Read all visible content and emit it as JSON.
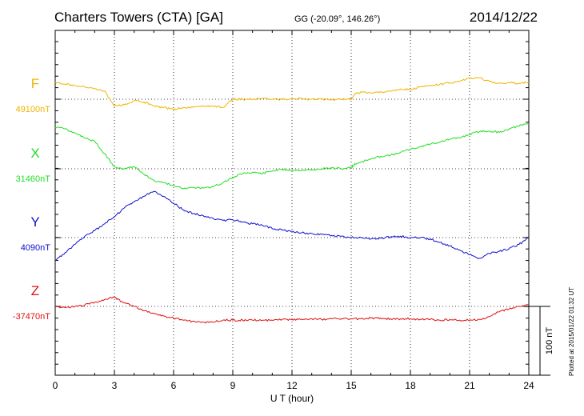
{
  "header": {
    "title": "Charters Towers (CTA)  [GA]",
    "coords": "GG (-20.09°, 146.26°)",
    "date": "2014/12/22"
  },
  "footer": {
    "plotted": "Plotted at 2015/01/22 01:32 UT"
  },
  "chart_data": {
    "type": "line",
    "xlabel": "U T (hour)",
    "xlim": [
      0,
      24
    ],
    "xticks": [
      0,
      3,
      6,
      9,
      12,
      15,
      18,
      21,
      24
    ],
    "grid": true,
    "scale_bar": {
      "label": "100 nT",
      "value_nT": 100
    },
    "colors": {
      "F": "#f0b400",
      "X": "#22dd22",
      "Y": "#1010cc",
      "Z": "#dd1111"
    },
    "series": [
      {
        "name": "F",
        "baseline_label": "49100nT",
        "baseline_nT": 49100,
        "color": "#f0b400",
        "x": [
          0,
          0.5,
          1,
          1.5,
          2,
          2.5,
          3,
          3.5,
          4,
          4.5,
          5,
          5.5,
          6,
          6.5,
          7,
          7.5,
          8,
          8.5,
          9,
          9.5,
          10,
          10.5,
          11,
          11.5,
          12,
          12.5,
          13,
          13.5,
          14,
          14.5,
          15,
          15.2,
          15.5,
          16,
          16.5,
          17,
          17.5,
          18,
          18.5,
          19,
          19.5,
          20,
          20.5,
          21,
          21.5,
          22,
          22.5,
          23,
          23.5,
          24
        ],
        "y": [
          49125,
          49122,
          49120,
          49118,
          49115,
          49112,
          49090,
          49092,
          49098,
          49096,
          49090,
          49088,
          49085,
          49088,
          49088,
          49090,
          49090,
          49088,
          49100,
          49100,
          49100,
          49101,
          49100,
          49100,
          49100,
          49101,
          49100,
          49100,
          49099,
          49100,
          49100,
          49108,
          49110,
          49109,
          49110,
          49112,
          49115,
          49114,
          49118,
          49120,
          49122,
          49124,
          49126,
          49130,
          49131,
          49126,
          49123,
          49124,
          49123,
          49125
        ]
      },
      {
        "name": "X",
        "baseline_label": "31460nT",
        "baseline_nT": 31460,
        "color": "#22dd22",
        "x": [
          0,
          0.5,
          1,
          1.5,
          2,
          2.5,
          3,
          3.5,
          4,
          4.5,
          5,
          5.5,
          6,
          6.5,
          7,
          7.5,
          8,
          8.5,
          9,
          9.5,
          10,
          10.5,
          11,
          11.5,
          12,
          12.5,
          13,
          13.5,
          14,
          14.5,
          15,
          15.2,
          15.5,
          16,
          16.5,
          17,
          17.5,
          18,
          18.5,
          19,
          19.5,
          20,
          20.5,
          21,
          21.5,
          22,
          22.5,
          23,
          23.5,
          24
        ],
        "y": [
          31520,
          31518,
          31512,
          31505,
          31500,
          31482,
          31463,
          31460,
          31463,
          31452,
          31443,
          31440,
          31436,
          31431,
          31433,
          31432,
          31434,
          31440,
          31448,
          31453,
          31455,
          31453,
          31457,
          31459,
          31458,
          31458,
          31458,
          31460,
          31461,
          31460,
          31462,
          31467,
          31470,
          31474,
          31478,
          31480,
          31484,
          31488,
          31492,
          31496,
          31499,
          31503,
          31505,
          31510,
          31514,
          31515,
          31513,
          31518,
          31522,
          31526
        ]
      },
      {
        "name": "Y",
        "baseline_label": "4090nT",
        "baseline_nT": 4090,
        "color": "#1010cc",
        "x": [
          0,
          0.5,
          1,
          1.5,
          2,
          2.5,
          3,
          3.5,
          4,
          4.5,
          5,
          5.5,
          6,
          6.5,
          7,
          7.5,
          8,
          8.5,
          9,
          9.5,
          10,
          10.5,
          11,
          11.5,
          12,
          12.5,
          13,
          13.5,
          14,
          14.5,
          15,
          15.5,
          16,
          16.5,
          17,
          17.5,
          18,
          18.5,
          19,
          19.5,
          20,
          20.5,
          21,
          21.5,
          22,
          22.5,
          23,
          23.5,
          24
        ],
        "y": [
          4056,
          4068,
          4080,
          4092,
          4100,
          4110,
          4120,
          4133,
          4142,
          4150,
          4157,
          4150,
          4140,
          4130,
          4125,
          4122,
          4118,
          4115,
          4116,
          4113,
          4110,
          4108,
          4103,
          4101,
          4099,
          4097,
          4096,
          4095,
          4093,
          4092,
          4090,
          4090,
          4088,
          4089,
          4091,
          4092,
          4090,
          4090,
          4088,
          4083,
          4078,
          4072,
          4065,
          4060,
          4067,
          4070,
          4074,
          4080,
          4090
        ]
      },
      {
        "name": "Z",
        "baseline_label": "-37470nT",
        "baseline_nT": -37470,
        "color": "#dd1111",
        "x": [
          0,
          0.5,
          1,
          1.5,
          2,
          2.5,
          3,
          3.5,
          4,
          4.5,
          5,
          5.5,
          6,
          6.5,
          7,
          7.5,
          8,
          8.5,
          9,
          9.5,
          10,
          10.5,
          11,
          11.5,
          12,
          12.5,
          13,
          13.5,
          14,
          14.5,
          15,
          15.5,
          16,
          16.5,
          17,
          17.5,
          18,
          18.5,
          19,
          19.5,
          20,
          20.5,
          21,
          21.5,
          22,
          22.5,
          23,
          23.5,
          24
        ],
        "y": [
          -37470,
          -37472,
          -37470,
          -37468,
          -37464,
          -37460,
          -37457,
          -37465,
          -37470,
          -37476,
          -37480,
          -37484,
          -37487,
          -37490,
          -37492,
          -37493,
          -37493,
          -37490,
          -37490,
          -37490,
          -37490,
          -37490,
          -37490,
          -37489,
          -37489,
          -37489,
          -37488,
          -37489,
          -37488,
          -37488,
          -37488,
          -37488,
          -37487,
          -37487,
          -37488,
          -37488,
          -37488,
          -37489,
          -37489,
          -37490,
          -37489,
          -37490,
          -37490,
          -37489,
          -37485,
          -37478,
          -37474,
          -37470,
          -37468
        ]
      }
    ]
  }
}
